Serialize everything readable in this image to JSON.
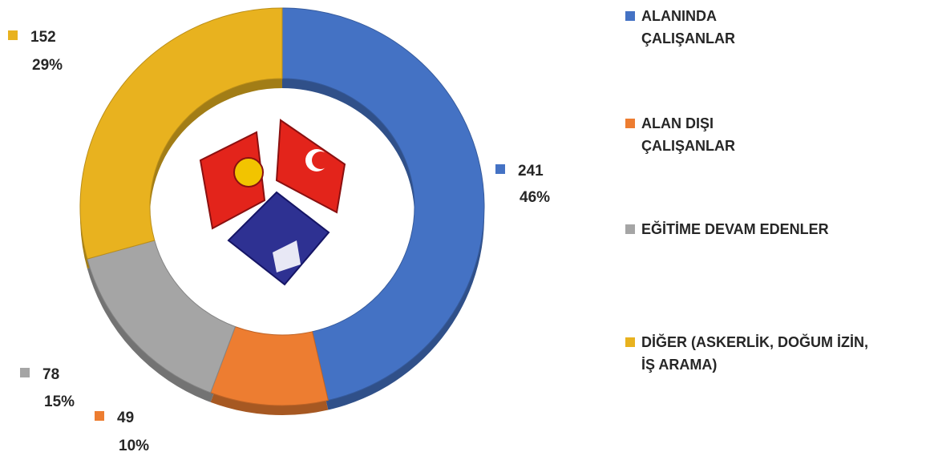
{
  "chart_data": {
    "type": "donut",
    "categories": [
      "ALANINDA\nÇALIŞANLAR",
      "ALAN DIŞI\nÇALIŞANLAR",
      "EĞİTİME DEVAM EDENLER",
      "DİĞER (ASKERLİK, DOĞUM İZİN,\nİŞ ARAMA)"
    ],
    "values": [
      241,
      49,
      78,
      152
    ],
    "percent_labels": [
      "46%",
      "10%",
      "15%",
      "29%"
    ],
    "colors": [
      "#4472c4",
      "#ed7d31",
      "#a5a5a5",
      "#e8b21f"
    ]
  }
}
